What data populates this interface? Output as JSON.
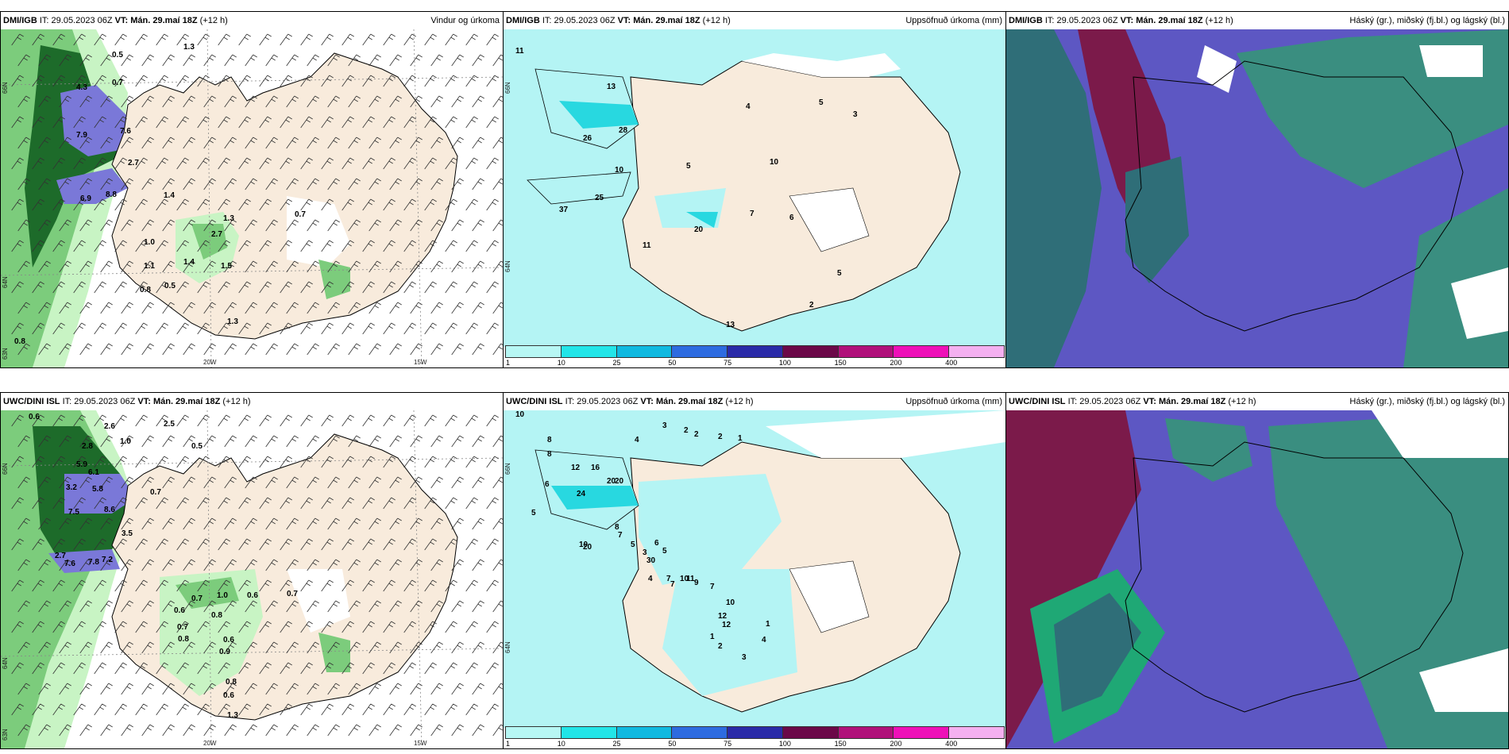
{
  "panels": [
    {
      "id": "p1",
      "model": "DMI/IGB",
      "it_label": "IT:",
      "it": "29.05.2023 06Z",
      "vt_label": "VT: Mán. 29.maí 18Z",
      "lead": "(+12 h)",
      "product": "Vindur og úrkoma"
    },
    {
      "id": "p2",
      "model": "DMI/IGB",
      "it_label": "IT:",
      "it": "29.05.2023 06Z",
      "vt_label": "VT: Mán. 29.maí 18Z",
      "lead": "(+12 h)",
      "product": "Uppsöfnuð úrkoma (mm)"
    },
    {
      "id": "p3",
      "model": "DMI/IGB",
      "it_label": "IT:",
      "it": "29.05.2023 06Z",
      "vt_label": "VT: Mán. 29.maí 18Z",
      "lead": "(+12 h)",
      "product": "Háský (gr.), miðský (fj.bl.) og lágský (bl.)"
    },
    {
      "id": "p4",
      "model": "UWC/DINI ISL",
      "it_label": "IT:",
      "it": "29.05.2023 06Z",
      "vt_label": "VT: Mán. 29.maí 18Z",
      "lead": "(+12 h)",
      "product": ""
    },
    {
      "id": "p5",
      "model": "UWC/DINI ISL",
      "it_label": "IT:",
      "it": "29.05.2023 06Z",
      "vt_label": "VT: Mán. 29.maí 18Z",
      "lead": "(+12 h)",
      "product": "Uppsöfnuð úrkoma (mm)"
    },
    {
      "id": "p6",
      "model": "UWC/DINI ISL",
      "it_label": "IT:",
      "it": "29.05.2023 06Z",
      "vt_label": "VT: Mán. 29.maí 18Z",
      "lead": "(+12 h)",
      "product": "Háský (gr.), miðský (fj.bl.) og lágský (bl.)"
    }
  ],
  "axis_labels": {
    "lat_66": "66N",
    "lat_64": "64N",
    "lat_63": "63N",
    "lon_20": "20W",
    "lon_15": "15W"
  },
  "colorbar": {
    "ticks": [
      "1",
      "10",
      "25",
      "50",
      "75",
      "100",
      "150",
      "200",
      "400"
    ],
    "colors": [
      "#b7f7f4",
      "#22e5e8",
      "#10b9e0",
      "#2d6be0",
      "#2a2aa8",
      "#6b0848",
      "#b0107a",
      "#ee10b8",
      "#f4b0f0"
    ]
  },
  "colors": {
    "land": "#f8ebdc",
    "sea": "#ffffff",
    "precip_light": "#c8f4c4",
    "precip_mid": "#7ccc7c",
    "precip_dark": "#1d6b2a",
    "precip_vdark": "#0d4a1a",
    "precip_purple": "#7a78d8",
    "accum_light": "#b4f4f4",
    "accum_mid": "#28d8e0",
    "cloud_purple": "#5d57c3",
    "cloud_teal": "#3a8e80",
    "cloud_maroon": "#7b1a4a",
    "cloud_green": "#1fa875"
  },
  "p1_values": [
    "0.5",
    "1.3",
    "0.7",
    "4.3",
    "7.9",
    "7.6",
    "2.7",
    "6.9",
    "8.8",
    "1.4",
    "1.3",
    "0.7",
    "1.0",
    "2.7",
    "1.1",
    "1.4",
    "1.5",
    "0.8",
    "0.5",
    "1.3",
    "0.8"
  ],
  "p2_values": [
    "11",
    "13",
    "26",
    "28",
    "10",
    "4",
    "5",
    "10",
    "5",
    "3",
    "25",
    "37",
    "20",
    "11",
    "7",
    "6",
    "5",
    "2",
    "13"
  ],
  "p4_values": [
    "0.6",
    "2.5",
    "2.6",
    "1.0",
    "2.8",
    "0.5",
    "5.9",
    "6.1",
    "3.2",
    "5.8",
    "0.7",
    "7.5",
    "8.6",
    "3.5",
    "2.7",
    "7.6",
    "7.8",
    "7.2",
    "1.0",
    "0.6",
    "0.7",
    "0.6",
    "0.7",
    "0.8",
    "0.7",
    "0.8",
    "0.6",
    "0.9",
    "0.8",
    "0.6",
    "1.3"
  ],
  "p5_values": [
    "10",
    "8",
    "8",
    "6",
    "4",
    "3",
    "2",
    "2",
    "2",
    "1",
    "12",
    "16",
    "20",
    "20",
    "24",
    "5",
    "8",
    "7",
    "5",
    "3",
    "10",
    "20",
    "30",
    "6",
    "5",
    "4",
    "7",
    "10",
    "11",
    "7",
    "7",
    "9",
    "10",
    "12",
    "12",
    "1",
    "2",
    "3",
    "4",
    "1"
  ]
}
